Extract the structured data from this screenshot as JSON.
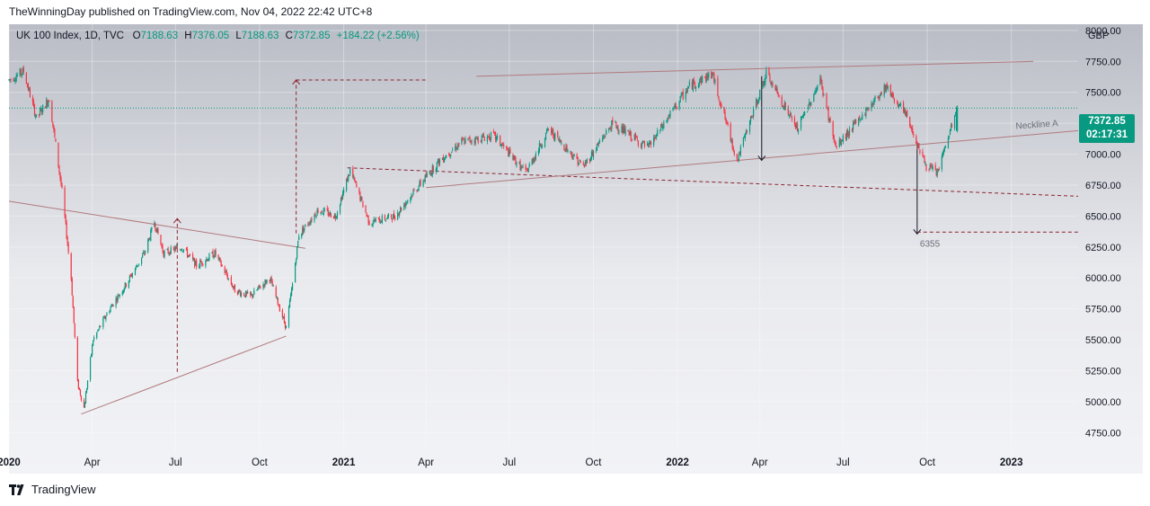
{
  "publish_info": "TheWinningDay published on TradingView.com, Nov 04, 2022 22:42 UTC+8",
  "legend": {
    "symbol": "UK 100 Index, 1D, TVC",
    "o_label": "O",
    "open": "7188.63",
    "h_label": "H",
    "high": "7376.05",
    "l_label": "L",
    "low": "7188.63",
    "c_label": "C",
    "close": "7372.85",
    "change": "+184.22 (+2.56%)"
  },
  "currency": "GBP",
  "last_price": "7372.85",
  "countdown": "02:17:31",
  "footer_brand": "TradingView",
  "colors": {
    "up": "#089981",
    "down": "#f23645",
    "trendline": "#b07a7e",
    "projection": "#8b2430"
  },
  "chart_data": {
    "type": "candlestick",
    "symbol": "UK 100 Index",
    "interval": "1D",
    "x_unit": "date",
    "xlim": [
      "2020-01-01",
      "2023-03-15"
    ],
    "ylim": [
      4600,
      8050
    ],
    "yticks": [
      4750,
      5000,
      5250,
      5500,
      5750,
      6000,
      6250,
      6500,
      6750,
      7000,
      7250,
      7500,
      7750,
      8000
    ],
    "xticks": [
      {
        "label": "2020",
        "date": "2020-01-01",
        "bold": true
      },
      {
        "label": "Apr",
        "date": "2020-04-01"
      },
      {
        "label": "Jul",
        "date": "2020-07-01"
      },
      {
        "label": "Oct",
        "date": "2020-10-01"
      },
      {
        "label": "2021",
        "date": "2021-01-01",
        "bold": true
      },
      {
        "label": "Apr",
        "date": "2021-04-01"
      },
      {
        "label": "Jul",
        "date": "2021-07-01"
      },
      {
        "label": "Oct",
        "date": "2021-10-01"
      },
      {
        "label": "2022",
        "date": "2022-01-01",
        "bold": true
      },
      {
        "label": "Apr",
        "date": "2022-04-01"
      },
      {
        "label": "Jul",
        "date": "2022-07-01"
      },
      {
        "label": "Oct",
        "date": "2022-10-01"
      },
      {
        "label": "2023",
        "date": "2023-01-01",
        "bold": true
      }
    ],
    "price_path": [
      [
        "2020-01-01",
        7600
      ],
      [
        "2020-01-17",
        7670
      ],
      [
        "2020-01-31",
        7290
      ],
      [
        "2020-02-14",
        7450
      ],
      [
        "2020-02-28",
        6700
      ],
      [
        "2020-03-09",
        6000
      ],
      [
        "2020-03-16",
        5150
      ],
      [
        "2020-03-23",
        4950
      ],
      [
        "2020-04-02",
        5500
      ],
      [
        "2020-04-20",
        5750
      ],
      [
        "2020-05-08",
        5950
      ],
      [
        "2020-05-28",
        6200
      ],
      [
        "2020-06-08",
        6450
      ],
      [
        "2020-06-18",
        6200
      ],
      [
        "2020-07-08",
        6250
      ],
      [
        "2020-07-24",
        6100
      ],
      [
        "2020-08-13",
        6200
      ],
      [
        "2020-09-04",
        5900
      ],
      [
        "2020-09-21",
        5850
      ],
      [
        "2020-10-12",
        6000
      ],
      [
        "2020-10-30",
        5600
      ],
      [
        "2020-11-06",
        5950
      ],
      [
        "2020-11-13",
        6350
      ],
      [
        "2020-12-04",
        6550
      ],
      [
        "2020-12-23",
        6500
      ],
      [
        "2021-01-08",
        6870
      ],
      [
        "2021-01-29",
        6450
      ],
      [
        "2021-02-26",
        6500
      ],
      [
        "2021-03-19",
        6700
      ],
      [
        "2021-04-16",
        6950
      ],
      [
        "2021-05-10",
        7100
      ],
      [
        "2021-06-14",
        7150
      ],
      [
        "2021-07-19",
        6850
      ],
      [
        "2021-08-13",
        7200
      ],
      [
        "2021-09-20",
        6900
      ],
      [
        "2021-10-22",
        7250
      ],
      [
        "2021-11-30",
        7050
      ],
      [
        "2021-12-31",
        7400
      ],
      [
        "2022-01-14",
        7550
      ],
      [
        "2022-02-08",
        7650
      ],
      [
        "2022-03-07",
        6950
      ],
      [
        "2022-04-08",
        7650
      ],
      [
        "2022-05-12",
        7200
      ],
      [
        "2022-06-06",
        7600
      ],
      [
        "2022-06-23",
        7050
      ],
      [
        "2022-08-17",
        7550
      ],
      [
        "2022-09-09",
        7300
      ],
      [
        "2022-09-30",
        6900
      ],
      [
        "2022-10-12",
        6850
      ],
      [
        "2022-11-03",
        7372
      ]
    ],
    "last_candle": {
      "open": 7188.63,
      "high": 7376.05,
      "low": 7188.63,
      "close": 7372.85
    },
    "annotations": {
      "neckline_label": "Neckline A",
      "target_label": "6355",
      "target_value": 6355
    },
    "drawings": [
      {
        "kind": "line",
        "style": "solid",
        "from": [
          "2020-01-01",
          6620
        ],
        "to": [
          "2020-11-20",
          6240
        ]
      },
      {
        "kind": "line",
        "style": "solid",
        "from": [
          "2020-03-20",
          4900
        ],
        "to": [
          "2020-10-30",
          5530
        ]
      },
      {
        "kind": "arrow",
        "style": "dashed",
        "from": [
          "2020-07-03",
          5240
        ],
        "to": [
          "2020-07-03",
          6480
        ]
      },
      {
        "kind": "arrow",
        "style": "dashed",
        "from": [
          "2020-11-10",
          6360
        ],
        "to": [
          "2020-11-10",
          7600
        ]
      },
      {
        "kind": "line",
        "style": "dashed",
        "from": [
          "2020-11-10",
          7600
        ],
        "to": [
          "2021-04-01",
          7600
        ]
      },
      {
        "kind": "line",
        "style": "dashed",
        "from": [
          "2021-01-05",
          6890
        ],
        "to": [
          "2023-03-15",
          6660
        ]
      },
      {
        "kind": "line",
        "style": "solid",
        "from": [
          "2021-04-01",
          6730
        ],
        "to": [
          "2023-03-15",
          7190
        ]
      },
      {
        "kind": "line",
        "style": "solid",
        "from": [
          "2021-05-26",
          7630
        ],
        "to": [
          "2023-01-25",
          7750
        ]
      },
      {
        "kind": "arrow",
        "style": "solid",
        "from": [
          "2022-04-03",
          7630
        ],
        "to": [
          "2022-04-03",
          6950
        ]
      },
      {
        "kind": "arrow",
        "style": "solid",
        "from": [
          "2022-09-20",
          7080
        ],
        "to": [
          "2022-09-20",
          6355
        ]
      },
      {
        "kind": "line",
        "style": "dashed",
        "from": [
          "2022-09-20",
          6370
        ],
        "to": [
          "2023-03-15",
          6370
        ]
      }
    ]
  }
}
